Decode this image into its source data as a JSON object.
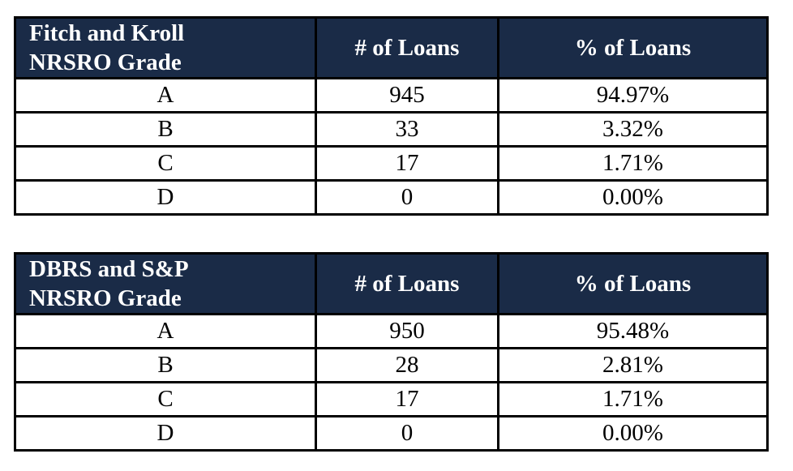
{
  "colors": {
    "header_bg": "#1a2b47",
    "header_text": "#ffffff",
    "body_text": "#000000",
    "border": "#000000",
    "page_bg": "#ffffff"
  },
  "tables": [
    {
      "title_line1": "Fitch and Kroll",
      "title_line2": "NRSRO Grade",
      "col_loans": "# of Loans",
      "col_pct": "% of Loans",
      "rows": [
        {
          "grade": "A",
          "count": "945",
          "pct": "94.97%"
        },
        {
          "grade": "B",
          "count": "33",
          "pct": "3.32%"
        },
        {
          "grade": "C",
          "count": "17",
          "pct": "1.71%"
        },
        {
          "grade": "D",
          "count": "0",
          "pct": "0.00%"
        }
      ]
    },
    {
      "title_line1": "DBRS and S&P",
      "title_line2": "NRSRO Grade",
      "col_loans": "# of Loans",
      "col_pct": "% of Loans",
      "rows": [
        {
          "grade": "A",
          "count": "950",
          "pct": "95.48%"
        },
        {
          "grade": "B",
          "count": "28",
          "pct": "2.81%"
        },
        {
          "grade": "C",
          "count": "17",
          "pct": "1.71%"
        },
        {
          "grade": "D",
          "count": "0",
          "pct": "0.00%"
        }
      ]
    }
  ]
}
